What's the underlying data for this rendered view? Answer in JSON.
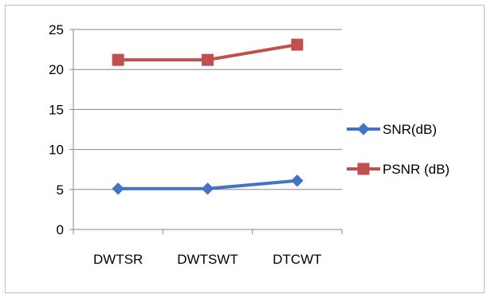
{
  "chart_data": {
    "type": "line",
    "categories": [
      "DWTSR",
      "DWTSWT",
      "DTCWT"
    ],
    "series": [
      {
        "name": "SNR(dB)",
        "values": [
          5.1,
          5.1,
          6.1
        ],
        "color": "#4472C4",
        "marker": "diamond"
      },
      {
        "name": "PSNR (dB)",
        "values": [
          21.2,
          21.2,
          23.1
        ],
        "color": "#C0504D",
        "marker": "square"
      }
    ],
    "title": "",
    "xlabel": "",
    "ylabel": "",
    "ylim": [
      0,
      25
    ],
    "yticks": [
      "0",
      "5",
      "10",
      "15",
      "20",
      "25"
    ],
    "grid": true,
    "legend": "right"
  }
}
